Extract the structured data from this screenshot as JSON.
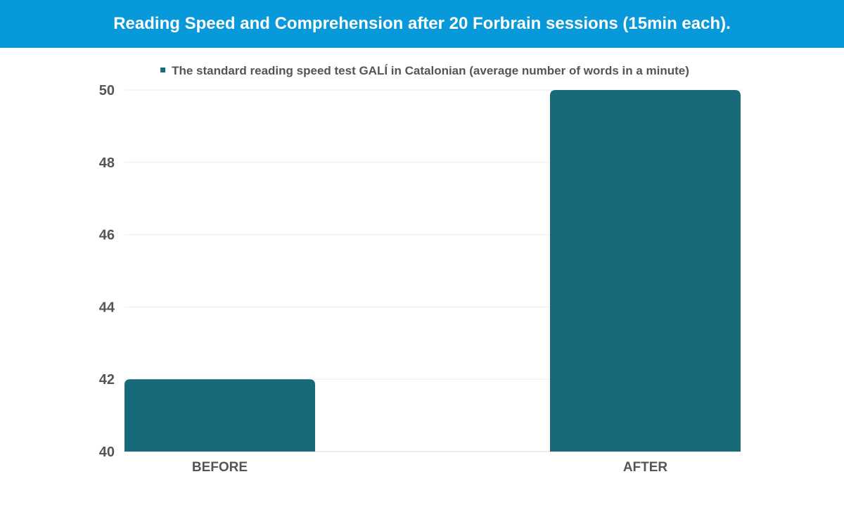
{
  "title": "Reading Speed and Comprehension after 20 Forbrain sessions (15min each).",
  "chart_data": {
    "type": "bar",
    "categories": [
      "BEFORE",
      "AFTER"
    ],
    "series": [
      {
        "name": "The standard reading speed test GALÍ in Catalonian (average number of words in a minute)",
        "values": [
          42,
          50
        ],
        "color": "#186a7a"
      }
    ],
    "ylim": [
      40,
      50
    ],
    "yticks": [
      40,
      42,
      44,
      46,
      48,
      50
    ],
    "grid": true,
    "legend": "top-center"
  },
  "colors": {
    "title_bar": "#0799d9",
    "bar": "#186a7a",
    "grid": "#eeeeee",
    "text": "#555555"
  }
}
